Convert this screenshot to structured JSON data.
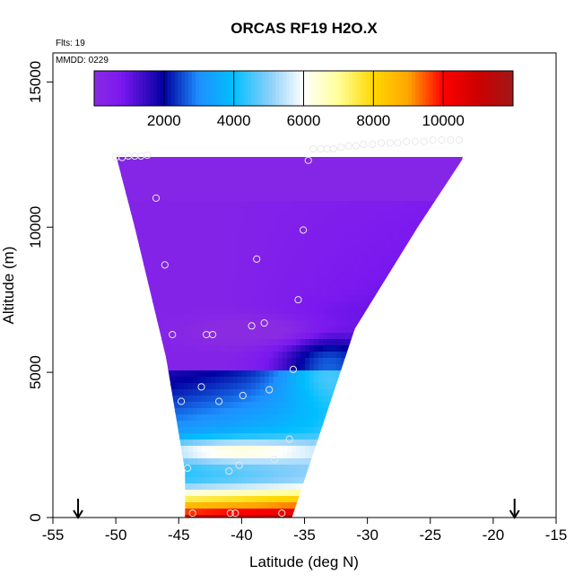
{
  "chart_data": {
    "type": "heatmap",
    "title": "ORCAS RF19 H2O.X",
    "xlabel": "Latitude (deg N)",
    "ylabel": "Altitude (m)",
    "xlim": [
      -55,
      -15
    ],
    "ylim": [
      0,
      16000
    ],
    "x_ticks": [
      -55,
      -50,
      -45,
      -40,
      -35,
      -30,
      -25,
      -20,
      -15
    ],
    "y_ticks": [
      0,
      5000,
      10000,
      15000
    ],
    "corner_labels": {
      "flights": "Flts: 19",
      "date": "MMDD: 0229"
    },
    "colorbar": {
      "range": [
        0,
        12000
      ],
      "ticks": [
        2000,
        4000,
        6000,
        8000,
        10000
      ],
      "stops": [
        [
          0,
          "#8a2be2"
        ],
        [
          800,
          "#7a18f0"
        ],
        [
          2000,
          "#0000a0"
        ],
        [
          3000,
          "#1e90ff"
        ],
        [
          4000,
          "#00bfff"
        ],
        [
          5000,
          "#87cefa"
        ],
        [
          6000,
          "#ffffff"
        ],
        [
          7000,
          "#ffff99"
        ],
        [
          8000,
          "#ffd700"
        ],
        [
          9000,
          "#ffa500"
        ],
        [
          10000,
          "#ff0000"
        ],
        [
          11000,
          "#cc0000"
        ],
        [
          12000,
          "#a01818"
        ]
      ]
    },
    "section_polygon": [
      [
        -50.0,
        12500
      ],
      [
        -46.0,
        12500
      ],
      [
        -40.0,
        12600
      ],
      [
        -30.0,
        12900
      ],
      [
        -22.0,
        13000
      ],
      [
        -22.5,
        12300
      ],
      [
        -26.0,
        10000
      ],
      [
        -31.0,
        6500
      ],
      [
        -36.0,
        0
      ],
      [
        -44.5,
        0
      ],
      [
        -44.5,
        1600
      ],
      [
        -46.0,
        5500
      ],
      [
        -48.5,
        10000
      ]
    ],
    "flight_points": [
      [
        -50.0,
        12400
      ],
      [
        -49.5,
        12400
      ],
      [
        -49.0,
        12450
      ],
      [
        -48.5,
        12450
      ],
      [
        -48.0,
        12450
      ],
      [
        -47.5,
        12480
      ],
      [
        -46.8,
        11000
      ],
      [
        -46.1,
        8700
      ],
      [
        -45.5,
        6300
      ],
      [
        -44.8,
        4000
      ],
      [
        -44.3,
        1700
      ],
      [
        -43.9,
        150
      ],
      [
        -43.2,
        4500
      ],
      [
        -42.8,
        6300
      ],
      [
        -42.3,
        6300
      ],
      [
        -41.8,
        4000
      ],
      [
        -41.0,
        1600
      ],
      [
        -40.9,
        150
      ],
      [
        -40.5,
        150
      ],
      [
        -40.2,
        1800
      ],
      [
        -39.9,
        4200
      ],
      [
        -39.2,
        6600
      ],
      [
        -38.8,
        8900
      ],
      [
        -38.2,
        6700
      ],
      [
        -37.8,
        4400
      ],
      [
        -37.4,
        2000
      ],
      [
        -36.8,
        150
      ],
      [
        -36.2,
        2700
      ],
      [
        -35.9,
        5100
      ],
      [
        -35.5,
        7500
      ],
      [
        -35.1,
        9900
      ],
      [
        -34.7,
        12300
      ],
      [
        -34.3,
        12700
      ],
      [
        -33.7,
        12700
      ],
      [
        -33.2,
        12700
      ],
      [
        -32.7,
        12700
      ],
      [
        -32.1,
        12750
      ],
      [
        -31.5,
        12800
      ],
      [
        -30.9,
        12800
      ],
      [
        -30.3,
        12850
      ],
      [
        -29.6,
        12850
      ],
      [
        -28.9,
        12900
      ],
      [
        -28.2,
        12900
      ],
      [
        -27.6,
        12900
      ],
      [
        -26.9,
        12950
      ],
      [
        -26.2,
        12950
      ],
      [
        -25.5,
        12950
      ],
      [
        -24.8,
        13000
      ],
      [
        -24.1,
        13000
      ],
      [
        -23.4,
        13000
      ],
      [
        -22.7,
        13000
      ]
    ],
    "arrows_lat": [
      -53.0,
      -18.3
    ]
  }
}
